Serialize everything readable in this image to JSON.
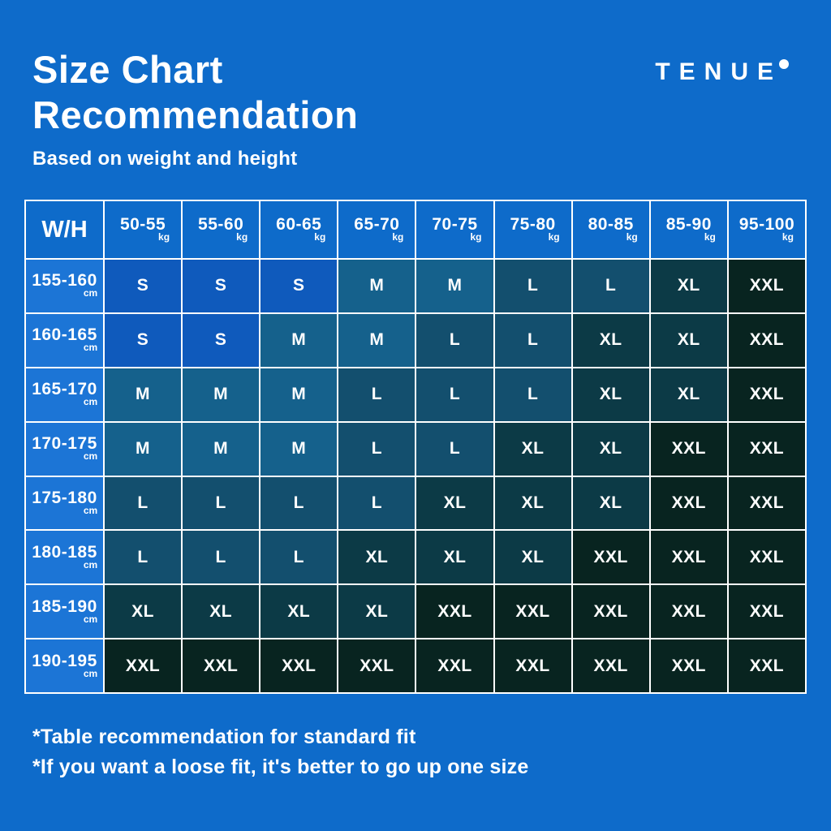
{
  "page": {
    "background": "#0e6bca",
    "title_line1": "Size Chart",
    "title_line2": "Recommendation",
    "subtitle": "Based on weight and height",
    "brand": "TENUE",
    "footnote1": "*Table recommendation for standard fit",
    "footnote2": "*If you want a loose fit, it's better to go up one size"
  },
  "chart_data": {
    "type": "table",
    "title": "Size Chart Recommendation",
    "subtitle": "Based on weight and height",
    "corner_label": "W/H",
    "weight_unit": "kg",
    "height_unit": "cm",
    "columns": [
      "50-55",
      "55-60",
      "60-65",
      "65-70",
      "70-75",
      "75-80",
      "80-85",
      "85-90",
      "95-100"
    ],
    "rows": [
      "155-160",
      "160-165",
      "165-170",
      "170-175",
      "175-180",
      "180-185",
      "185-190",
      "190-195"
    ],
    "cells": [
      [
        "S",
        "S",
        "S",
        "M",
        "M",
        "L",
        "L",
        "XL",
        "XXL"
      ],
      [
        "S",
        "S",
        "M",
        "M",
        "L",
        "L",
        "XL",
        "XL",
        "XXL"
      ],
      [
        "M",
        "M",
        "M",
        "L",
        "L",
        "L",
        "XL",
        "XL",
        "XXL"
      ],
      [
        "M",
        "M",
        "M",
        "L",
        "L",
        "XL",
        "XL",
        "XXL",
        "XXL"
      ],
      [
        "L",
        "L",
        "L",
        "L",
        "XL",
        "XL",
        "XL",
        "XXL",
        "XXL"
      ],
      [
        "L",
        "L",
        "L",
        "XL",
        "XL",
        "XL",
        "XXL",
        "XXL",
        "XXL"
      ],
      [
        "XL",
        "XL",
        "XL",
        "XL",
        "XXL",
        "XXL",
        "XXL",
        "XXL",
        "XXL"
      ],
      [
        "XXL",
        "XXL",
        "XXL",
        "XXL",
        "XXL",
        "XXL",
        "XXL",
        "XXL",
        "XXL"
      ]
    ],
    "size_colors": {
      "S": "#0f5abc",
      "M": "#15618c",
      "L": "#134f6e",
      "XL": "#0c3a46",
      "XXL": "#082420"
    },
    "header_bg": "#0e6bca",
    "row_label_bg": "#1c75d6",
    "grid_color": "#ffffff",
    "legend_position": "none",
    "grid": true
  }
}
